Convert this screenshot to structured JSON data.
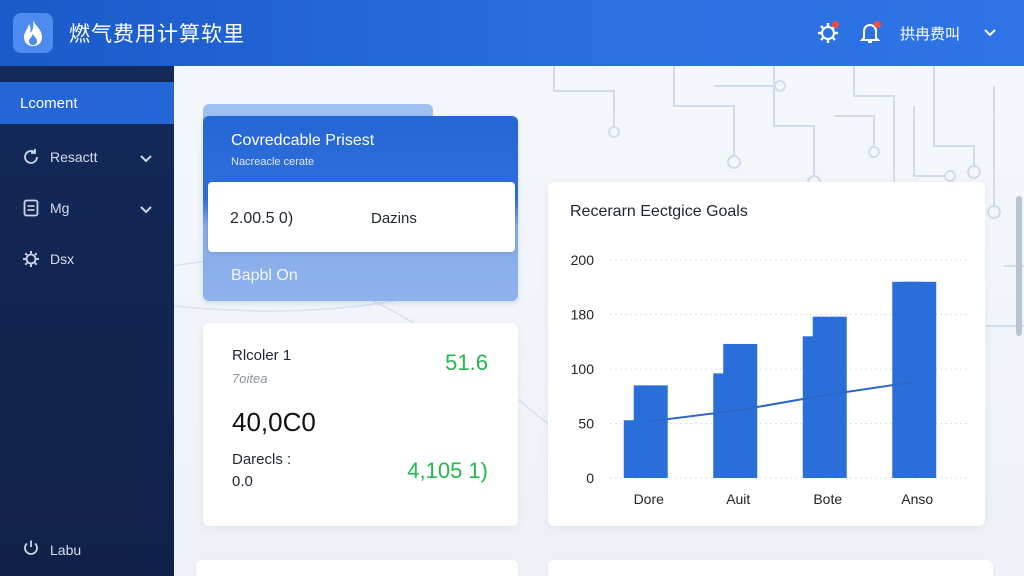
{
  "header": {
    "title": "燃气费用计算软里",
    "user_name": "拱冉费叫",
    "icons": [
      "gear-icon",
      "bell-icon",
      "chevron-down-icon"
    ]
  },
  "sidebar": {
    "active": "Lcoment",
    "items": [
      {
        "label": "Resactt",
        "icon": "refresh-icon",
        "expandable": true
      },
      {
        "label": "Mg",
        "icon": "document-icon",
        "expandable": true
      },
      {
        "label": "Dsx",
        "icon": "gear-icon",
        "expandable": false
      }
    ],
    "bottom": {
      "label": "Labu",
      "icon": "power-icon"
    }
  },
  "card_blue": {
    "title": "Covredcable Prisest",
    "subtitle": "Nacreacle cerate",
    "value": "2.00.5 0)",
    "label": "Dazins",
    "footer": "Bapbl On"
  },
  "card_stats": {
    "title": "Rlcoler 1",
    "subtitle": "7oitea",
    "green1": "51.6",
    "big_value": "40,0C0",
    "label2": "Darecls :",
    "value2": "0.0",
    "green2": "4,105 1)"
  },
  "chart_data": {
    "type": "bar",
    "title": "Recerarn Eectgice Goals",
    "categories": [
      "Dore",
      "Auit",
      "Bote",
      "Anso"
    ],
    "series": [
      {
        "values": [
          53,
          96,
          130,
          180
        ]
      },
      {
        "values": [
          85,
          123,
          148,
          180
        ]
      }
    ],
    "line": [
      52,
      62,
      76,
      88
    ],
    "y_ticks": [
      "0",
      "50",
      "100",
      "180",
      "200"
    ],
    "ylim": [
      0,
      200
    ],
    "grid": true,
    "colors": {
      "bar": "#2a6fd9",
      "line": "#2c66c9"
    }
  }
}
